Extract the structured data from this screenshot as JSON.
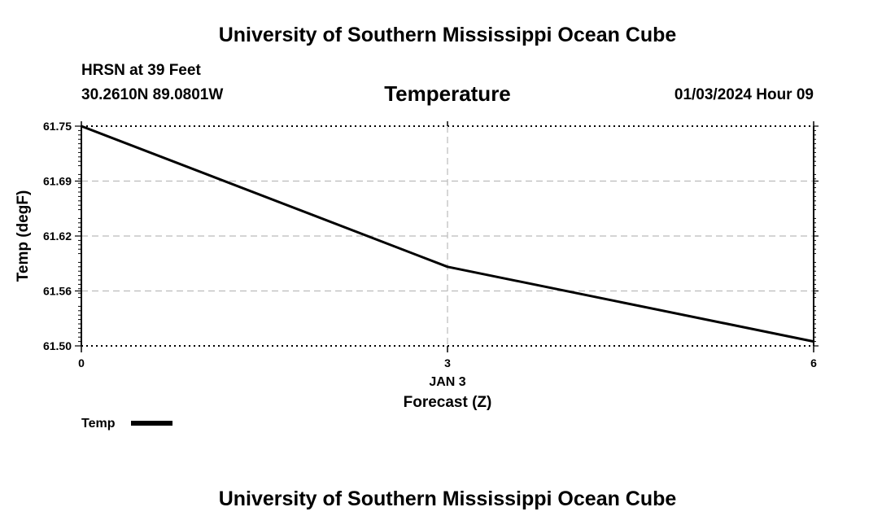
{
  "header": {
    "title": "University of Southern Mississippi Ocean Cube",
    "station": "HRSN at 39 Feet",
    "coords": "30.2610N  89.0801W",
    "datetime": "01/03/2024 Hour 09"
  },
  "footer": {
    "title": "University of Southern Mississippi Ocean Cube"
  },
  "chart_data": {
    "type": "line",
    "title": "Temperature",
    "xlabel": "Forecast (Z)",
    "date_label": "JAN 3",
    "ylabel": "Temp (degF)",
    "xlim": [
      0,
      6
    ],
    "ylim": [
      61.5,
      61.75
    ],
    "x_ticks": [
      "0",
      "3",
      "6"
    ],
    "y_ticks": [
      "61.50",
      "61.56",
      "61.62",
      "61.69",
      "61.75"
    ],
    "grid": true,
    "legend_position": "bottom-left",
    "series": [
      {
        "name": "Temp",
        "color": "#000000",
        "x": [
          0,
          3,
          6
        ],
        "values": [
          61.75,
          61.59,
          61.505
        ]
      }
    ]
  }
}
